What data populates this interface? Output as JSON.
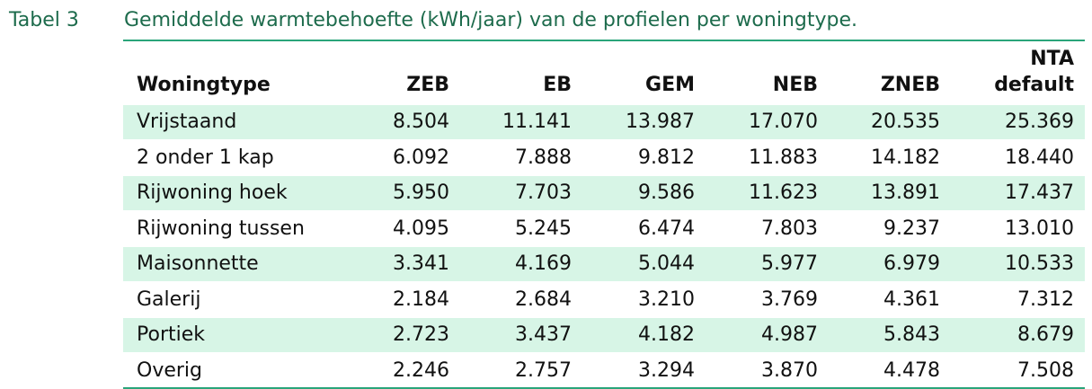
{
  "caption": {
    "label": "Tabel 3",
    "title": "Gemiddelde warmtebehoefte (kWh/jaar) van de profielen per woningtype."
  },
  "table": {
    "columns": [
      "Woningtype",
      "ZEB",
      "EB",
      "GEM",
      "NEB",
      "ZNEB",
      "NTA\ndefault"
    ],
    "rows": [
      [
        "Vrijstaand",
        "8.504",
        "11.141",
        "13.987",
        "17.070",
        "20.535",
        "25.369"
      ],
      [
        "2 onder 1 kap",
        "6.092",
        "7.888",
        "9.812",
        "11.883",
        "14.182",
        "18.440"
      ],
      [
        "Rijwoning hoek",
        "5.950",
        "7.703",
        "9.586",
        "11.623",
        "13.891",
        "17.437"
      ],
      [
        "Rijwoning tussen",
        "4.095",
        "5.245",
        "6.474",
        "7.803",
        "9.237",
        "13.010"
      ],
      [
        "Maisonnette",
        "3.341",
        "4.169",
        "5.044",
        "5.977",
        "6.979",
        "10.533"
      ],
      [
        "Galerij",
        "2.184",
        "2.684",
        "3.210",
        "3.769",
        "4.361",
        "7.312"
      ],
      [
        "Portiek",
        "2.723",
        "3.437",
        "4.182",
        "4.987",
        "5.843",
        "8.679"
      ],
      [
        "Overig",
        "2.246",
        "2.757",
        "3.294",
        "3.870",
        "4.478",
        "7.508"
      ]
    ]
  }
}
